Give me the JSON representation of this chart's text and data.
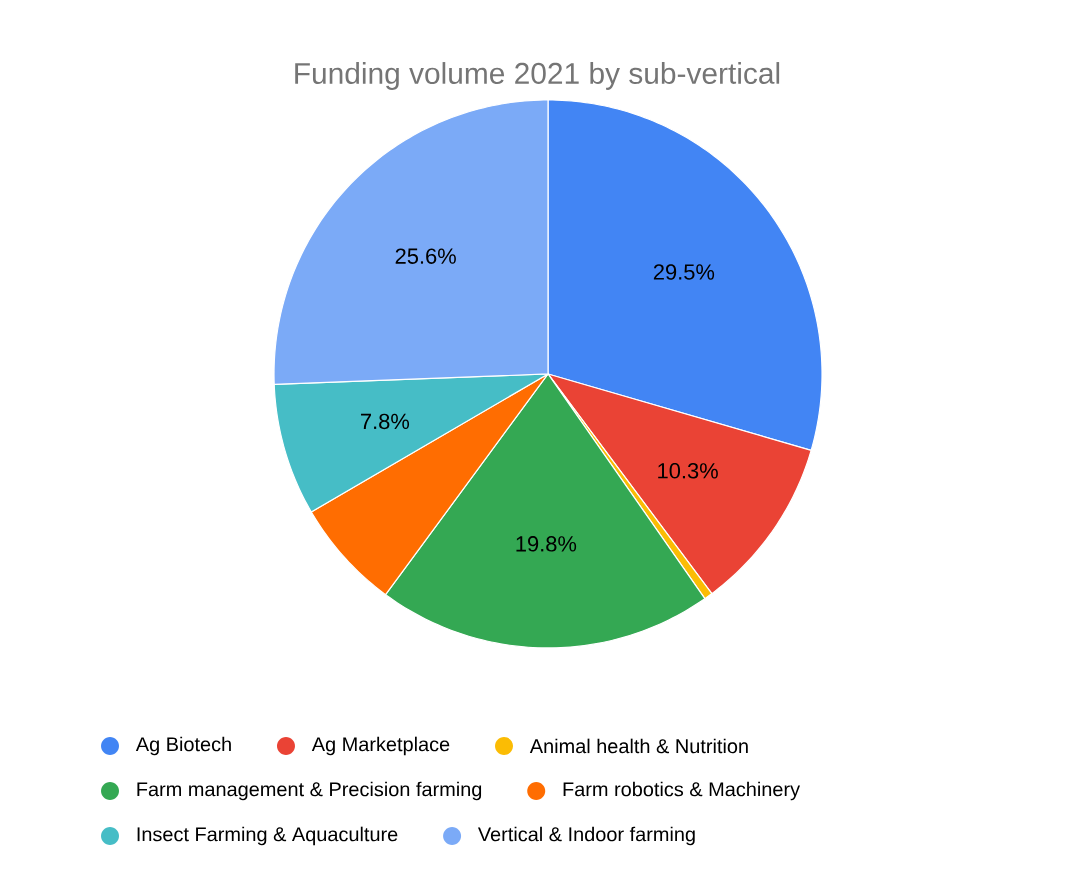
{
  "chart_data": {
    "type": "pie",
    "title": "Funding volume 2021 by sub-vertical",
    "categories": [
      "Ag Biotech",
      "Ag Marketplace",
      "Animal health & Nutrition",
      "Farm management & Precision farming",
      "Farm robotics & Machinery",
      "Insect Farming & Aquaculture",
      "Vertical & Indoor farming"
    ],
    "values": [
      29.5,
      10.3,
      0.5,
      19.8,
      6.5,
      7.8,
      25.6
    ],
    "colors": [
      "#4285f4",
      "#ea4335",
      "#fbbc04",
      "#34a853",
      "#ff6d01",
      "#46bdc6",
      "#7baaf7"
    ],
    "value_labels": [
      "29.5%",
      "10.3%",
      null,
      "19.8%",
      null,
      "7.8%",
      "25.6%"
    ],
    "legend": "bottom"
  }
}
